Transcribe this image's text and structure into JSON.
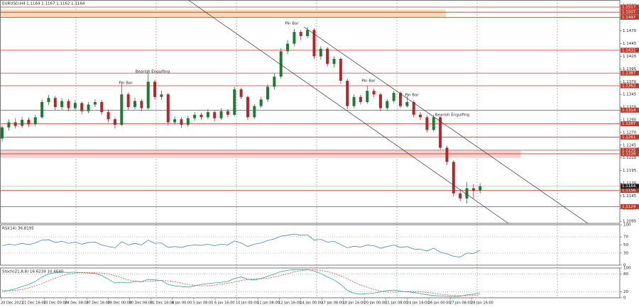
{
  "chart_data": [
    {
      "type": "candlestick",
      "title": "EURUSD,H4  1.1164 1.1167 1.1162 1.1164",
      "open": [
        1.1258,
        1.128,
        1.129,
        1.1283,
        1.1295,
        1.1286,
        1.13,
        1.133,
        1.1338,
        1.132,
        1.1332,
        1.1318,
        1.1328,
        1.1312,
        1.1325,
        1.133,
        1.131,
        1.1296,
        1.1285,
        1.1345,
        1.132,
        1.1332,
        1.1318,
        1.137,
        1.134,
        1.1345,
        1.129,
        1.1296,
        1.1285,
        1.1298,
        1.1305,
        1.13,
        1.131,
        1.1298,
        1.1312,
        1.1305,
        1.1355,
        1.134,
        1.13,
        1.1322,
        1.1335,
        1.136,
        1.138,
        1.143,
        1.1445,
        1.1468,
        1.146,
        1.1472,
        1.142,
        1.1435,
        1.1405,
        1.1415,
        1.1372,
        1.1322,
        1.134,
        1.133,
        1.1352,
        1.1345,
        1.1318,
        1.1332,
        1.1348,
        1.1322,
        1.133,
        1.1305,
        1.13,
        1.1275,
        1.13,
        1.124,
        1.1212,
        1.115,
        1.114,
        1.116,
        1.1155
      ],
      "high": [
        1.1284,
        1.1296,
        1.1298,
        1.1301,
        1.13,
        1.1305,
        1.1336,
        1.1344,
        1.1342,
        1.1338,
        1.1336,
        1.1333,
        1.1331,
        1.133,
        1.1336,
        1.1334,
        1.1315,
        1.13,
        1.1367,
        1.1349,
        1.1338,
        1.1336,
        1.1392,
        1.1374,
        1.1352,
        1.1348,
        1.1302,
        1.13,
        1.1303,
        1.131,
        1.1309,
        1.1316,
        1.1313,
        1.1318,
        1.1316,
        1.136,
        1.1358,
        1.1343,
        1.1326,
        1.134,
        1.1365,
        1.1386,
        1.1436,
        1.1452,
        1.1474,
        1.1472,
        1.1478,
        1.1475,
        1.144,
        1.1438,
        1.142,
        1.1418,
        1.1376,
        1.1345,
        1.1344,
        1.1362,
        1.1356,
        1.1348,
        1.1336,
        1.1352,
        1.1351,
        1.1342,
        1.1333,
        1.131,
        1.1304,
        1.1305,
        1.1302,
        1.1244,
        1.1215,
        1.1158,
        1.1172,
        1.1168,
        1.117
      ],
      "low": [
        1.1252,
        1.1274,
        1.1278,
        1.1279,
        1.1281,
        1.1282,
        1.1297,
        1.1324,
        1.1314,
        1.1315,
        1.1312,
        1.1314,
        1.1306,
        1.1308,
        1.132,
        1.1305,
        1.129,
        1.1278,
        1.1282,
        1.1315,
        1.1316,
        1.1312,
        1.1314,
        1.1335,
        1.1334,
        1.1284,
        1.1285,
        1.1279,
        1.1281,
        1.1293,
        1.1295,
        1.1296,
        1.1292,
        1.1295,
        1.13,
        1.1302,
        1.1336,
        1.1295,
        1.1296,
        1.1318,
        1.133,
        1.1355,
        1.1376,
        1.1424,
        1.144,
        1.1452,
        1.1456,
        1.1415,
        1.1414,
        1.14,
        1.1398,
        1.1366,
        1.1316,
        1.1318,
        1.1325,
        1.1326,
        1.134,
        1.1312,
        1.1314,
        1.1328,
        1.1318,
        1.1319,
        1.13,
        1.1295,
        1.127,
        1.1272,
        1.1236,
        1.1206,
        1.1144,
        1.1134,
        1.113,
        1.114,
        1.115
      ],
      "close": [
        1.128,
        1.129,
        1.1283,
        1.1295,
        1.1286,
        1.13,
        1.133,
        1.1338,
        1.132,
        1.1332,
        1.1318,
        1.1328,
        1.1312,
        1.1325,
        1.133,
        1.131,
        1.1296,
        1.1285,
        1.1345,
        1.132,
        1.1332,
        1.1318,
        1.137,
        1.134,
        1.1345,
        1.129,
        1.1296,
        1.1285,
        1.1298,
        1.1305,
        1.13,
        1.131,
        1.1298,
        1.1312,
        1.1305,
        1.1355,
        1.134,
        1.13,
        1.1322,
        1.1335,
        1.136,
        1.138,
        1.143,
        1.1445,
        1.1468,
        1.146,
        1.1472,
        1.142,
        1.1435,
        1.1405,
        1.1415,
        1.1372,
        1.1322,
        1.134,
        1.133,
        1.1352,
        1.1345,
        1.1318,
        1.1332,
        1.1348,
        1.1322,
        1.133,
        1.1305,
        1.13,
        1.1275,
        1.13,
        1.124,
        1.1212,
        1.115,
        1.114,
        1.116,
        1.1155,
        1.1164
      ],
      "up_color": "#1e7b34",
      "down_color": "#b3262b",
      "ylim": [
        1.1091,
        1.1531
      ],
      "yticks": [
        {
          "value": 1.152,
          "label": "1.1520"
        },
        1.1495,
        {
          "value": 1.147,
          "label": "1.1470"
        },
        1.1445,
        {
          "value": 1.142,
          "label": "1.1420"
        },
        1.1395,
        {
          "value": 1.137,
          "label": "1.1370"
        },
        1.1345,
        {
          "value": 1.132,
          "label": "1.1320"
        },
        1.1295,
        {
          "value": 1.127,
          "label": "1.1270"
        },
        1.1245,
        {
          "value": 1.122,
          "label": "1.1220"
        },
        1.1195,
        {
          "value": 1.117,
          "label": "1.1170"
        },
        1.1145,
        {
          "value": 1.112,
          "label": "1.1120"
        },
        1.1095
      ],
      "levels": [
        1.1517,
        1.1507,
        1.1497,
        1.1432,
        1.1387,
        1.1362,
        1.1314,
        1.1287,
        1.1261,
        1.1235,
        1.1228,
        1.1156,
        1.1124
      ],
      "level_color": "#c0392b",
      "current_price": 1.1164,
      "zones": [
        {
          "from": 1.1497,
          "to": 1.1512,
          "color": "#fdd9b5"
        },
        {
          "from": 1.122,
          "to": 1.1234,
          "color": "#f9d0d0"
        }
      ],
      "annotations": [
        "Pin Bar",
        "Bearish Engulfing",
        "Pin Bar",
        "Pin Bar",
        "Pin Bar",
        "Bearish Engulfing"
      ],
      "x_labels": [
        "20 Dec 2021",
        "21 Dec 16:00",
        "23 Dec 00:00",
        "24 Dec 08:00",
        "27 Dec 16:00",
        "29 Dec 00:00",
        "30 Dec 08:00",
        "31 Dec 16:00",
        "4 Jan 00:00",
        "5 Jan 08:00",
        "6 Jan 16:00",
        "10 Jan 00:00",
        "11 Jan 08:00",
        "12 Jan 16:00",
        "14 Jan 00:00",
        "17 Jan 08:00",
        "18 Jan 16:00",
        "20 Jan 00:00",
        "21 Jan 08:00",
        "24 Jan 16:00",
        "26 Jan 00:00",
        "27 Jan 08:00",
        "28 Jan 16:00"
      ]
    },
    {
      "type": "line",
      "title": "RSI(14) 36.8195",
      "ylim": [
        0,
        100
      ],
      "yticks": [
        100,
        70,
        50,
        30,
        0
      ],
      "levels": [
        70,
        30
      ],
      "series": [
        {
          "color": "#4682b4",
          "values": [
            48,
            52,
            50,
            54,
            51,
            55,
            62,
            63,
            56,
            59,
            54,
            57,
            52,
            56,
            57,
            50,
            46,
            43,
            58,
            50,
            54,
            50,
            62,
            54,
            55,
            44,
            46,
            44,
            48,
            50,
            49,
            52,
            48,
            52,
            50,
            60,
            55,
            46,
            52,
            55,
            61,
            65,
            72,
            74,
            77,
            74,
            75,
            62,
            64,
            57,
            59,
            51,
            43,
            47,
            45,
            50,
            48,
            42,
            46,
            50,
            44,
            46,
            40,
            39,
            35,
            42,
            32,
            28,
            22,
            20,
            30,
            29,
            36.8195
          ]
        }
      ]
    },
    {
      "type": "line",
      "title": "Stoch(21,8,8) 16.6239 10.4640",
      "ylim": [
        0,
        100
      ],
      "yticks": [
        100,
        80,
        20,
        0
      ],
      "levels": [
        80,
        20
      ],
      "series": [
        {
          "color": "#2eaa8a",
          "dashed": false,
          "values": [
            20,
            25,
            30,
            38,
            45,
            55,
            70,
            80,
            84,
            86,
            85,
            86,
            84,
            83,
            82,
            75,
            62,
            50,
            52,
            50,
            55,
            54,
            62,
            60,
            58,
            45,
            40,
            38,
            36,
            40,
            45,
            48,
            50,
            52,
            55,
            65,
            70,
            62,
            60,
            65,
            72,
            80,
            88,
            92,
            95,
            94,
            95,
            90,
            82,
            70,
            60,
            45,
            25,
            15,
            12,
            14,
            16,
            20,
            24,
            26,
            22,
            20,
            18,
            14,
            10,
            8,
            6,
            5,
            4,
            5,
            10,
            12,
            16.6239
          ]
        },
        {
          "color": "#e0484a",
          "dashed": true,
          "values": [
            25,
            24,
            25,
            28,
            33,
            40,
            48,
            57,
            66,
            74,
            80,
            83,
            85,
            85,
            84,
            83,
            80,
            74,
            67,
            60,
            56,
            54,
            55,
            57,
            58,
            57,
            54,
            49,
            45,
            42,
            40,
            41,
            43,
            46,
            49,
            53,
            58,
            62,
            63,
            64,
            66,
            70,
            75,
            81,
            87,
            91,
            94,
            94,
            92,
            88,
            82,
            74,
            64,
            53,
            43,
            35,
            28,
            22,
            19,
            19,
            20,
            21,
            21,
            20,
            18,
            15,
            12,
            10,
            8,
            7,
            7,
            8,
            10.464
          ]
        }
      ]
    }
  ]
}
